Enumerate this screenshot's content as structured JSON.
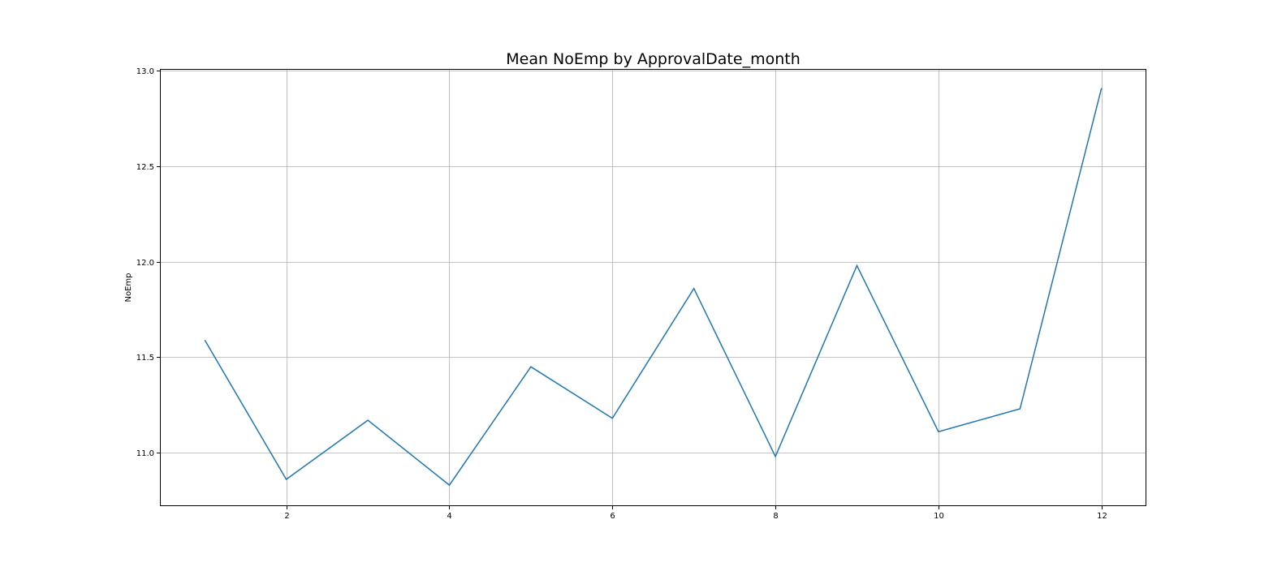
{
  "chart_data": {
    "type": "line",
    "title": "Mean NoEmp by ApprovalDate_month",
    "xlabel": "",
    "ylabel": "NoEmp",
    "xlim": [
      0.45,
      12.55
    ],
    "ylim": [
      10.72,
      13.01
    ],
    "grid": true,
    "x_ticks": [
      2,
      4,
      6,
      8,
      10,
      12
    ],
    "x_tick_labels": [
      "2",
      "4",
      "6",
      "8",
      "10",
      "12"
    ],
    "y_ticks": [
      11.0,
      11.5,
      12.0,
      12.5,
      13.0
    ],
    "y_tick_labels": [
      "11.0",
      "11.5",
      "12.0",
      "12.5",
      "13.0"
    ],
    "series": [
      {
        "color": "#1f77b4",
        "x": [
          1,
          2,
          3,
          4,
          5,
          6,
          7,
          8,
          9,
          10,
          11,
          12
        ],
        "y": [
          11.59,
          10.86,
          11.17,
          10.83,
          11.45,
          11.18,
          11.86,
          10.98,
          11.98,
          11.11,
          11.23,
          12.91
        ]
      }
    ]
  }
}
